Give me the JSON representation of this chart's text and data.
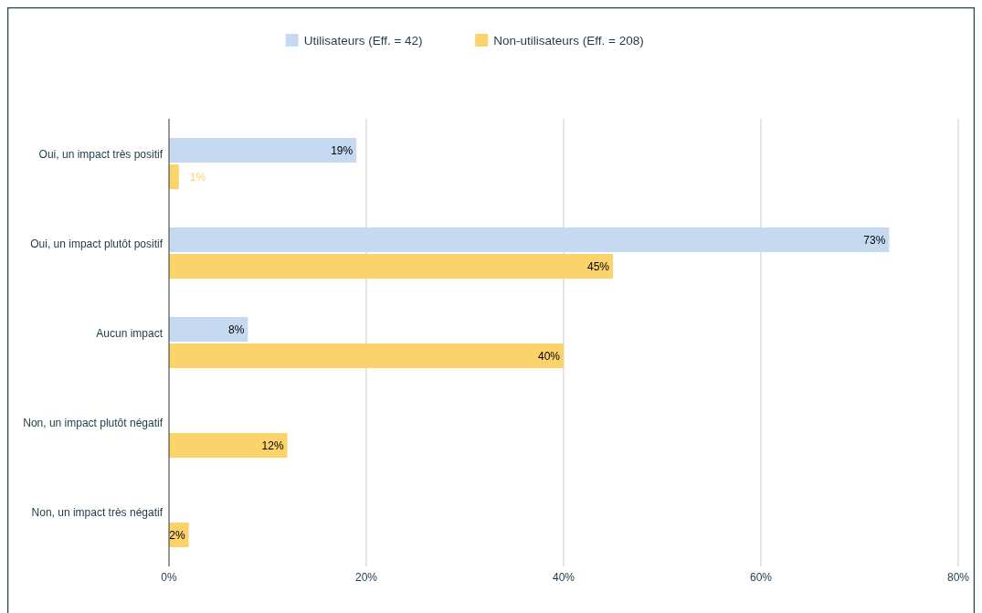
{
  "chart_data": {
    "type": "bar",
    "orientation": "horizontal",
    "categories": [
      "Oui, un impact très positif",
      "Oui, un impact plutôt positif",
      "Aucun impact",
      "Non, un impact plutôt négatif",
      "Non, un impact très négatif"
    ],
    "series": [
      {
        "name": "Utilisateurs (Eff. = 42)",
        "color": "#c5daf1",
        "values": [
          19,
          73,
          8,
          null,
          null
        ],
        "value_labels": [
          "19%",
          "73%",
          "8%",
          null,
          null
        ]
      },
      {
        "name": "Non-utilisateurs (Eff. = 208)",
        "color": "#fcd26a",
        "values": [
          1,
          45,
          40,
          12,
          2
        ],
        "value_labels": [
          "1%",
          "45%",
          "40%",
          "12%",
          "2%"
        ]
      }
    ],
    "xlim": [
      0,
      80
    ],
    "xticks": [
      {
        "value": 0,
        "label": "0%"
      },
      {
        "value": 20,
        "label": "20%"
      },
      {
        "value": 40,
        "label": "40%"
      },
      {
        "value": 60,
        "label": "60%"
      },
      {
        "value": 80,
        "label": "80%"
      }
    ],
    "grid": "x",
    "legend": "top"
  }
}
